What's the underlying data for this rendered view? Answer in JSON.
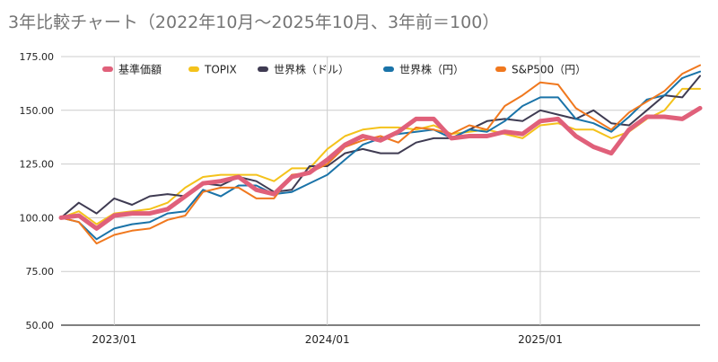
{
  "chart_data": {
    "type": "line",
    "title": "3年比較チャート（2022年10月〜2025年10月、3年前＝100）",
    "xlabel": "",
    "ylabel": "",
    "ylim": [
      50,
      175
    ],
    "y_ticks": [
      "50.00",
      "75.00",
      "100.00",
      "125.00",
      "150.00",
      "175.00"
    ],
    "grid": true,
    "legend_position": "top",
    "x": [
      "2022-10",
      "2022-11",
      "2022-12",
      "2023-01",
      "2023-02",
      "2023-03",
      "2023-04",
      "2023-05",
      "2023-06",
      "2023-07",
      "2023-08",
      "2023-09",
      "2023-10",
      "2023-11",
      "2023-12",
      "2024-01",
      "2024-02",
      "2024-03",
      "2024-04",
      "2024-05",
      "2024-06",
      "2024-07",
      "2024-08",
      "2024-09",
      "2024-10",
      "2024-11",
      "2024-12",
      "2025-01",
      "2025-02",
      "2025-03",
      "2025-04",
      "2025-05",
      "2025-06",
      "2025-07",
      "2025-08",
      "2025-09",
      "2025-10"
    ],
    "x_ticks": [
      {
        "label": "2023/01",
        "index": 3
      },
      {
        "label": "2024/01",
        "index": 15
      },
      {
        "label": "2025/01",
        "index": 27
      }
    ],
    "series": [
      {
        "name": "基準価額",
        "color": "#e0607a",
        "width": 5,
        "values": [
          100,
          101,
          95,
          101,
          102,
          102,
          104,
          110,
          116,
          117,
          119,
          113,
          111,
          119,
          121,
          127,
          134,
          138,
          136,
          140,
          146,
          146,
          137,
          138,
          138,
          140,
          139,
          145,
          146,
          138,
          133,
          130,
          141,
          147,
          147,
          146,
          151
        ]
      },
      {
        "name": "TOPIX",
        "color": "#f4c21b",
        "width": 2,
        "values": [
          100,
          103,
          97,
          102,
          103,
          104,
          107,
          114,
          119,
          120,
          120,
          120,
          117,
          123,
          123,
          132,
          138,
          141,
          142,
          142,
          141,
          143,
          139,
          140,
          141,
          139,
          137,
          143,
          144,
          141,
          141,
          137,
          140,
          146,
          150,
          160,
          160
        ]
      },
      {
        "name": "世界株（ドル）",
        "color": "#3f3b52",
        "width": 2,
        "values": [
          100,
          107,
          102,
          109,
          106,
          110,
          111,
          110,
          116,
          115,
          119,
          117,
          112,
          113,
          124,
          124,
          130,
          132,
          130,
          130,
          135,
          137,
          137,
          141,
          145,
          146,
          145,
          150,
          148,
          146,
          150,
          144,
          143,
          150,
          157,
          156,
          166
        ]
      },
      {
        "name": "世界株（円）",
        "color": "#1a73a8",
        "width": 2,
        "values": [
          100,
          98,
          90,
          95,
          97,
          98,
          102,
          103,
          113,
          110,
          115,
          115,
          111,
          112,
          116,
          120,
          127,
          134,
          137,
          139,
          140,
          141,
          137,
          141,
          140,
          145,
          152,
          156,
          156,
          146,
          144,
          140,
          147,
          155,
          157,
          165,
          168
        ]
      },
      {
        "name": "S&P500（円）",
        "color": "#f0781e",
        "width": 2,
        "values": [
          100,
          98,
          88,
          92,
          94,
          95,
          99,
          101,
          112,
          114,
          114,
          109,
          109,
          120,
          121,
          125,
          133,
          136,
          138,
          135,
          142,
          141,
          139,
          143,
          141,
          152,
          157,
          163,
          162,
          151,
          146,
          141,
          149,
          154,
          159,
          167,
          171
        ]
      }
    ]
  }
}
